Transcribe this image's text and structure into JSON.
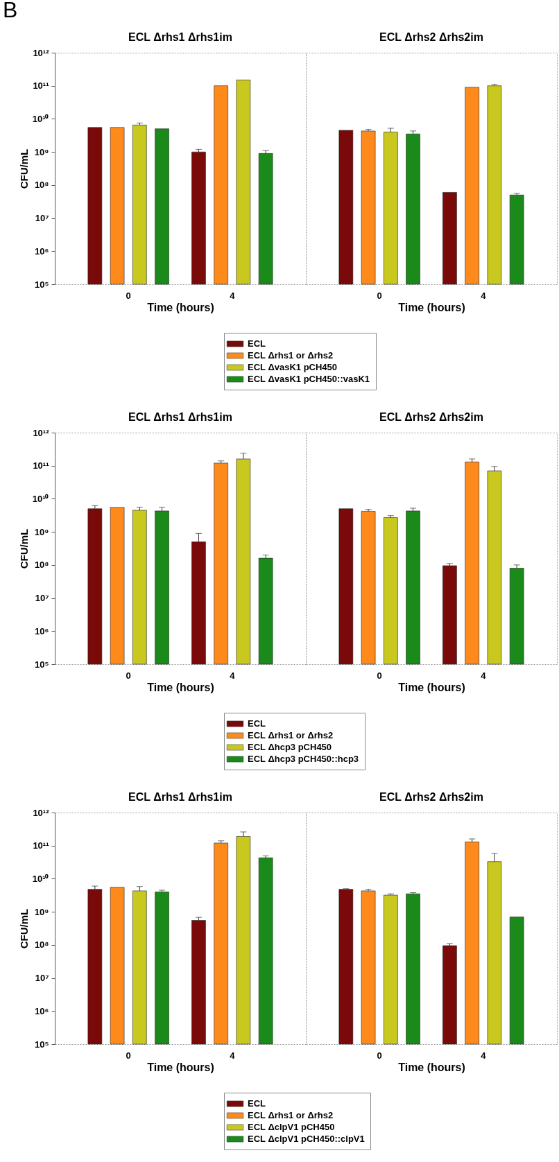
{
  "chart_data": [
    {
      "type": "bar",
      "title": "ECL Δrhs1 Δrhs1im",
      "annotations": [
        "B"
      ],
      "xlabel": "Time (hours)",
      "ylabel": "CFU/mL",
      "categories": [
        "0",
        "4"
      ],
      "log": true,
      "ylim": [
        100000.0,
        1000000000000.0
      ],
      "yticks": [
        {
          "value": 100000.0,
          "label": "10⁵"
        },
        {
          "value": 1000000.0,
          "label": "10⁶"
        },
        {
          "value": 10000000.0,
          "label": "10⁷"
        },
        {
          "value": 100000000.0,
          "label": "10⁸"
        },
        {
          "value": 1000000000.0,
          "label": "10⁹"
        },
        {
          "value": 10000000000.0,
          "label": "10¹⁰"
        },
        {
          "value": 100000000000.0,
          "label": "10¹¹"
        },
        {
          "value": 1000000000000.0,
          "label": "10¹²"
        }
      ],
      "legend": "bottom",
      "series": [
        {
          "name": "ECL",
          "color": "#7a0a0a",
          "values": [
            5500000000.0,
            1000000000.0
          ],
          "errors": [
            null,
            [
              1000000000.0,
              1200000000.0
            ]
          ]
        },
        {
          "name": "ECL Δrhs1 or Δrhs2",
          "color": "#ff8a1c",
          "values": [
            5500000000.0,
            100000000000.0
          ],
          "errors": [
            null,
            null
          ]
        },
        {
          "name": "ECL ΔvasK1 pCH450",
          "color": "#c8c81e",
          "values": [
            6500000000.0,
            150000000000.0
          ],
          "errors": [
            [
              6500000000.0,
              7500000000.0
            ],
            null
          ]
        },
        {
          "name": "ECL ΔvasK1 pCH450::vasK1",
          "color": "#1a8a1a",
          "values": [
            5000000000.0,
            900000000.0
          ],
          "errors": [
            null,
            [
              900000000.0,
              1100000000.0
            ]
          ]
        }
      ]
    },
    {
      "type": "bar",
      "title": "ECL Δrhs2 Δrhs2im",
      "xlabel": "Time (hours)",
      "categories": [
        "0",
        "4"
      ],
      "log": true,
      "tick_labels": "x",
      "ylim": [
        100000.0,
        1000000000000.0
      ],
      "series": [
        {
          "color": "#7a0a0a",
          "values": [
            4500000000.0,
            60000000.0
          ],
          "errors": [
            null,
            null
          ]
        },
        {
          "color": "#ff8a1c",
          "values": [
            4300000000.0,
            90000000000.0
          ],
          "errors": [
            [
              4300000000.0,
              4800000000.0
            ],
            null
          ]
        },
        {
          "color": "#c8c81e",
          "values": [
            4000000000.0,
            100000000000.0
          ],
          "errors": [
            [
              4000000000.0,
              5200000000.0
            ],
            [
              100000000000.0,
              110000000000.0
            ]
          ]
        },
        {
          "color": "#1a8a1a",
          "values": [
            3500000000.0,
            50000000.0
          ],
          "errors": [
            [
              3500000000.0,
              4300000000.0
            ],
            [
              50000000.0,
              56000000.0
            ]
          ]
        }
      ]
    },
    {
      "type": "bar",
      "title": "ECL Δrhs1 Δrhs1im",
      "xlabel": "Time (hours)",
      "ylabel": "CFU/mL",
      "categories": [
        "0",
        "4"
      ],
      "log": true,
      "ylim": [
        100000.0,
        1000000000000.0
      ],
      "yticks": [
        {
          "value": 100000.0,
          "label": "10⁵"
        },
        {
          "value": 1000000.0,
          "label": "10⁶"
        },
        {
          "value": 10000000.0,
          "label": "10⁷"
        },
        {
          "value": 100000000.0,
          "label": "10⁸"
        },
        {
          "value": 1000000000.0,
          "label": "10⁹"
        },
        {
          "value": 10000000000.0,
          "label": "10¹⁰"
        },
        {
          "value": 100000000000.0,
          "label": "10¹¹"
        },
        {
          "value": 1000000000000.0,
          "label": "10¹²"
        }
      ],
      "legend": "bottom",
      "series": [
        {
          "name": "ECL",
          "color": "#7a0a0a",
          "values": [
            5000000000.0,
            500000000.0
          ],
          "errors": [
            [
              5000000000.0,
              6200000000.0
            ],
            [
              500000000.0,
              900000000.0
            ]
          ]
        },
        {
          "name": "ECL Δrhs1 or Δrhs2",
          "color": "#ff8a1c",
          "values": [
            5500000000.0,
            120000000000.0
          ],
          "errors": [
            null,
            [
              120000000000.0,
              140000000000.0
            ]
          ]
        },
        {
          "name": "ECL Δhcp3 pCH450",
          "color": "#c8c81e",
          "values": [
            4500000000.0,
            160000000000.0
          ],
          "errors": [
            [
              4500000000.0,
              5600000000.0
            ],
            [
              160000000000.0,
              240000000000.0
            ]
          ]
        },
        {
          "name": "ECL Δhcp3 pCH450::hcp3",
          "color": "#1a8a1a",
          "values": [
            4300000000.0,
            160000000.0
          ],
          "errors": [
            [
              4300000000.0,
              5600000000.0
            ],
            [
              160000000.0,
              200000000.0
            ]
          ]
        }
      ]
    },
    {
      "type": "bar",
      "title": "ECL Δrhs2 Δrhs2im",
      "xlabel": "Time (hours)",
      "categories": [
        "0",
        "4"
      ],
      "log": true,
      "tick_labels": "x",
      "ylim": [
        100000.0,
        1000000000000.0
      ],
      "series": [
        {
          "color": "#7a0a0a",
          "values": [
            5000000000.0,
            95000000.0
          ],
          "errors": [
            null,
            [
              95000000.0,
              110000000.0
            ]
          ]
        },
        {
          "color": "#ff8a1c",
          "values": [
            4200000000.0,
            130000000000.0
          ],
          "errors": [
            [
              4200000000.0,
              4800000000.0
            ],
            [
              130000000000.0,
              160000000000.0
            ]
          ]
        },
        {
          "color": "#c8c81e",
          "values": [
            2700000000.0,
            70000000000.0
          ],
          "errors": [
            [
              2700000000.0,
              3100000000.0
            ],
            [
              70000000000.0,
              95000000000.0
            ]
          ]
        },
        {
          "color": "#1a8a1a",
          "values": [
            4300000000.0,
            80000000.0
          ],
          "errors": [
            [
              4300000000.0,
              5200000000.0
            ],
            [
              80000000.0,
              100000000.0
            ]
          ]
        }
      ]
    },
    {
      "type": "bar",
      "title": "ECL Δrhs1 Δrhs1im",
      "xlabel": "Time (hours)",
      "ylabel": "CFU/mL",
      "categories": [
        "0",
        "4"
      ],
      "log": true,
      "ylim": [
        100000.0,
        1000000000000.0
      ],
      "yticks": [
        {
          "value": 100000.0,
          "label": "10⁵"
        },
        {
          "value": 1000000.0,
          "label": "10⁶"
        },
        {
          "value": 10000000.0,
          "label": "10⁷"
        },
        {
          "value": 100000000.0,
          "label": "10⁸"
        },
        {
          "value": 1000000000.0,
          "label": "10⁹"
        },
        {
          "value": 10000000000.0,
          "label": "10¹⁰"
        },
        {
          "value": 100000000000.0,
          "label": "10¹¹"
        },
        {
          "value": 1000000000000.0,
          "label": "10¹²"
        }
      ],
      "legend": "bottom",
      "series": [
        {
          "name": "ECL",
          "color": "#7a0a0a",
          "values": [
            4800000000.0,
            550000000.0
          ],
          "errors": [
            [
              4800000000.0,
              6000000000.0
            ],
            [
              550000000.0,
              680000000.0
            ]
          ]
        },
        {
          "name": "ECL Δrhs1 or Δrhs2",
          "color": "#ff8a1c",
          "values": [
            5500000000.0,
            120000000000.0
          ],
          "errors": [
            null,
            [
              120000000000.0,
              140000000000.0
            ]
          ]
        },
        {
          "name": "ECL ΔclpV1 pCH450",
          "color": "#c8c81e",
          "values": [
            4300000000.0,
            190000000000.0
          ],
          "errors": [
            [
              4300000000.0,
              5800000000.0
            ],
            [
              190000000000.0,
              260000000000.0
            ]
          ]
        },
        {
          "name": "ECL ΔclpV1 pCH450::clpV1",
          "color": "#1a8a1a",
          "values": [
            4000000000.0,
            43000000000.0
          ],
          "errors": [
            [
              4000000000.0,
              4500000000.0
            ],
            [
              43000000000.0,
              49000000000.0
            ]
          ]
        }
      ]
    },
    {
      "type": "bar",
      "title": "ECL Δrhs2 Δrhs2im",
      "xlabel": "Time (hours)",
      "categories": [
        "0",
        "4"
      ],
      "log": true,
      "tick_labels": "x",
      "ylim": [
        100000.0,
        1000000000000.0
      ],
      "series": [
        {
          "color": "#7a0a0a",
          "values": [
            4800000000.0,
            95000000.0
          ],
          "errors": [
            [
              4800000000.0,
              5000000000.0
            ],
            [
              95000000.0,
              110000000.0
            ]
          ]
        },
        {
          "color": "#ff8a1c",
          "values": [
            4300000000.0,
            130000000000.0
          ],
          "errors": [
            [
              4300000000.0,
              4800000000.0
            ],
            [
              130000000000.0,
              160000000000.0
            ]
          ]
        },
        {
          "color": "#c8c81e",
          "values": [
            3200000000.0,
            33000000000.0
          ],
          "errors": [
            [
              3200000000.0,
              3500000000.0
            ],
            [
              33000000000.0,
              58000000000.0
            ]
          ]
        },
        {
          "color": "#1a8a1a",
          "values": [
            3500000000.0,
            700000000.0
          ],
          "errors": [
            [
              3500000000.0,
              3800000000.0
            ],
            null
          ]
        }
      ]
    }
  ]
}
